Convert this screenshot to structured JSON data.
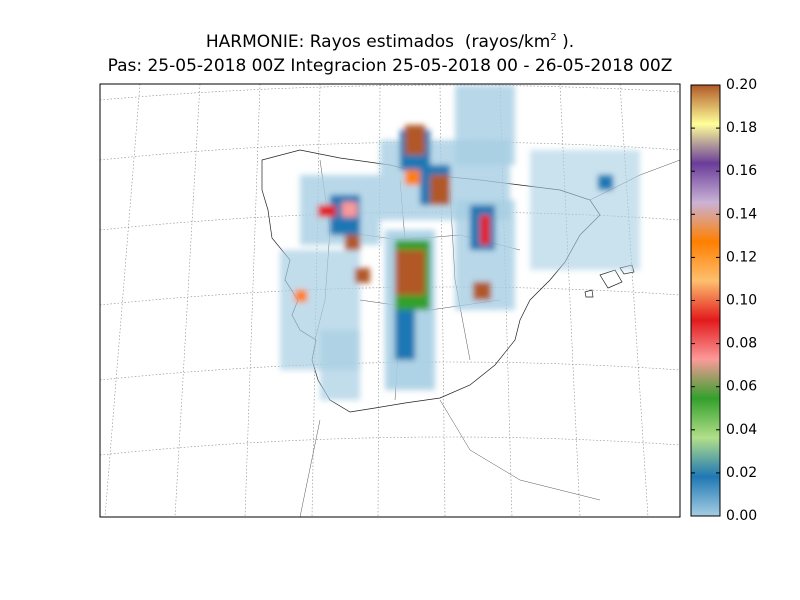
{
  "title": "HARMONIE: Rayos estimados  (rayos/km",
  "title_superscript": "2",
  "title_end": " ).",
  "subtitle": "Pas: 25-05-2018 00Z Integracion 25-05-2018 00 - 26-05-2018 00Z",
  "colorbar": {
    "range": [
      0,
      0.2
    ],
    "ticks": [
      {
        "value": 0,
        "label": "0.00"
      },
      {
        "value": 0.02,
        "label": "0.02"
      },
      {
        "value": 0.04,
        "label": "0.04"
      },
      {
        "value": 0.06,
        "label": "0.06"
      },
      {
        "value": 0.08,
        "label": "0.08"
      },
      {
        "value": 0.1,
        "label": "0.10"
      },
      {
        "value": 0.12,
        "label": "0.12"
      },
      {
        "value": 0.14,
        "label": "0.14"
      },
      {
        "value": 0.16,
        "label": "0.16"
      },
      {
        "value": 0.18,
        "label": "0.18"
      },
      {
        "value": 0.2,
        "label": "0.20"
      }
    ],
    "colors": [
      "#a6cee3",
      "#1f78b4",
      "#b2df8a",
      "#33a02c",
      "#fb9a99",
      "#e31a1c",
      "#fdbf6f",
      "#ff7f00",
      "#cab2d6",
      "#6a3d9a",
      "#ffff99",
      "#b15928"
    ]
  }
}
